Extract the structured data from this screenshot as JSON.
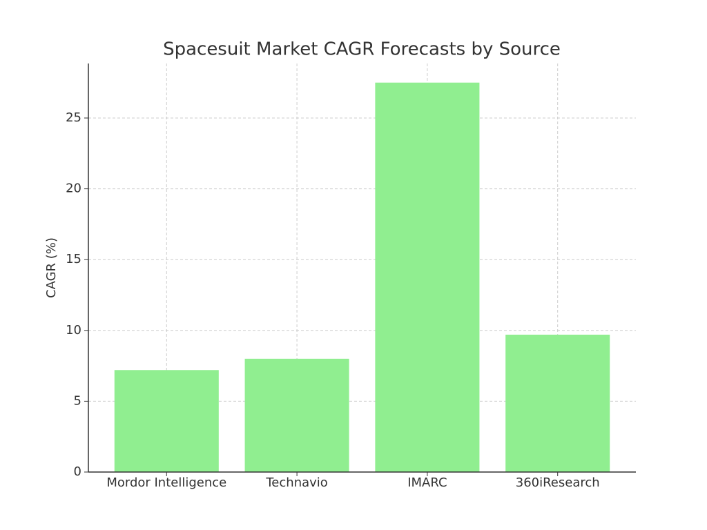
{
  "chart_data": {
    "type": "bar",
    "title": "Spacesuit Market CAGR Forecasts by Source",
    "ylabel": "CAGR (%)",
    "categories": [
      "Mordor Intelligence",
      "Technavio",
      "IMARC",
      "360iResearch"
    ],
    "values": [
      7.2,
      8.0,
      27.5,
      9.7
    ],
    "color": "#90ee90",
    "ylim": [
      0,
      28.85
    ],
    "yticks": [
      0,
      5,
      10,
      15,
      20,
      25
    ],
    "grid": true
  }
}
